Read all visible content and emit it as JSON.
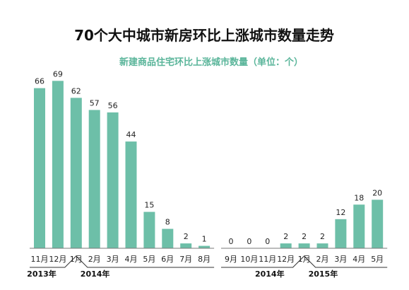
{
  "colors": {
    "bar": "#6dbfa8",
    "subtitle": "#5ab59a",
    "baseline": "#7a7a7a",
    "bracket": "#333333"
  },
  "chart_data": {
    "type": "bar",
    "title": "70个大中城市新房环比上涨城市数量走势",
    "subtitle": "新建商品住宅环比上涨城市数量（单位：个）",
    "segments": [
      {
        "group_labels": [
          "2013年",
          "2014年"
        ],
        "categories": [
          "11月",
          "12月",
          "1月",
          "2月",
          "3月",
          "4月",
          "5月",
          "6月",
          "7月",
          "8月"
        ],
        "values": [
          66,
          69,
          62,
          57,
          56,
          44,
          15,
          8,
          2,
          1
        ]
      },
      {
        "group_labels": [
          "2014年",
          "2015年"
        ],
        "categories": [
          "9月",
          "10月",
          "11月",
          "12月",
          "1月",
          "2月",
          "3月",
          "4月",
          "5月"
        ],
        "values": [
          0,
          0,
          0,
          2,
          2,
          2,
          12,
          18,
          20
        ]
      }
    ],
    "ylim": [
      0,
      69
    ],
    "grid": false,
    "legend": "none"
  }
}
